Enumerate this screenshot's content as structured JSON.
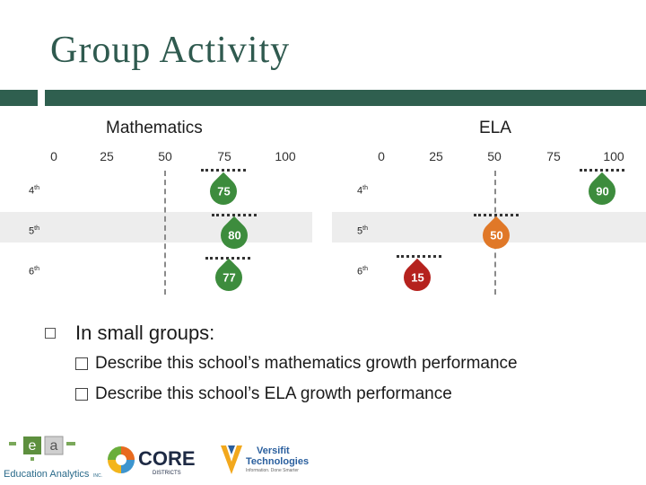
{
  "slide": {
    "title": "Group Activity"
  },
  "colors": {
    "header_bar": "#2f5f4f",
    "green_marker": "#3d8c3d",
    "orange_marker": "#e07828",
    "red_marker": "#b5221e"
  },
  "chart_data": [
    {
      "type": "scatter",
      "title": "Mathematics",
      "x_ticks": [
        "0",
        "25",
        "50",
        "75",
        "100"
      ],
      "xlim": [
        0,
        100
      ],
      "categories": [
        "4th",
        "5th",
        "6th"
      ],
      "values": [
        75,
        80,
        77
      ],
      "value_labels": [
        "75",
        "80",
        "77"
      ],
      "reference_line": 50,
      "marker_colors": [
        "green",
        "green",
        "green"
      ]
    },
    {
      "type": "scatter",
      "title": "ELA",
      "x_ticks": [
        "0",
        "25",
        "50",
        "75",
        "100"
      ],
      "xlim": [
        0,
        100
      ],
      "categories": [
        "4th",
        "5th",
        "6th"
      ],
      "values": [
        90,
        50,
        15
      ],
      "value_labels": [
        "90",
        "50",
        "15"
      ],
      "reference_line": 50,
      "marker_colors": [
        "green",
        "orange",
        "red"
      ]
    }
  ],
  "grades": {
    "g4": {
      "num": "4",
      "suffix": "th"
    },
    "g5": {
      "num": "5",
      "suffix": "th"
    },
    "g6": {
      "num": "6",
      "suffix": "th"
    }
  },
  "content": {
    "main_bullet": "In small groups:",
    "sub_bullets": [
      "Describe this school’s mathematics growth performance",
      "Describe this school’s ELA growth performance"
    ]
  },
  "logos": {
    "ea_e": "e",
    "ea_a": "a",
    "ea_name": "Education Analytics",
    "ea_suffix": "INC.",
    "core_name": "CORE",
    "core_sub": "DISTRICTS",
    "versifit_name_1": "Versifit",
    "versifit_name_2": "Technologies",
    "versifit_tagline": "Information. Done Smarter"
  }
}
